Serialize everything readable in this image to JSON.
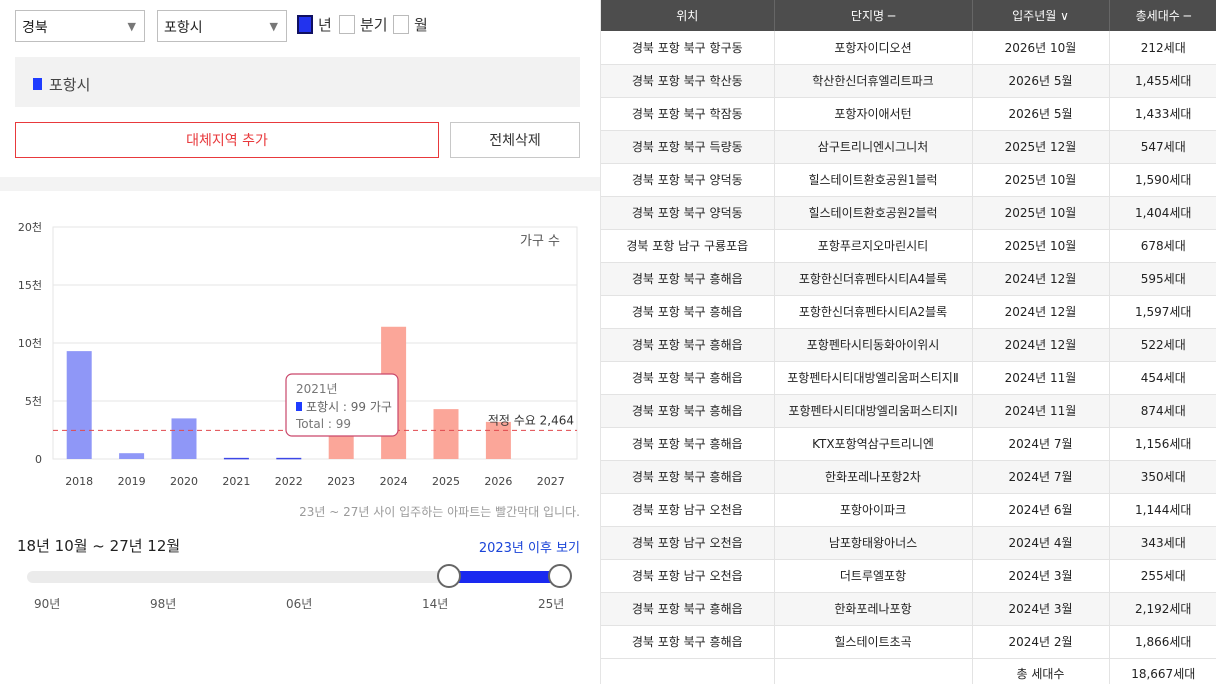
{
  "filters": {
    "province": "경북",
    "city": "포항시",
    "period_options": [
      {
        "label": "년",
        "checked": true
      },
      {
        "label": "분기",
        "checked": false
      },
      {
        "label": "월",
        "checked": false
      }
    ]
  },
  "selected_region": "포항시",
  "buttons": {
    "add_alternative": "대체지역 추가",
    "delete_all": "전체삭제"
  },
  "chart_data": {
    "type": "bar",
    "series_label": "가구 수",
    "y_ticks": [
      "20천",
      "15천",
      "10천",
      "5천",
      "0"
    ],
    "ylim": [
      0,
      20000
    ],
    "categories": [
      "2018",
      "2019",
      "2020",
      "2021",
      "2022",
      "2023",
      "2024",
      "2025",
      "2026",
      "2027"
    ],
    "values": [
      9300,
      500,
      3500,
      99,
      100,
      3200,
      11400,
      4300,
      3200,
      0
    ],
    "past_color": "#8f97f7",
    "future_color": "#fba699",
    "future_from": "2023",
    "reference_line": {
      "value": 2464,
      "label": "적정 수요 2,464",
      "color": "#e0484d"
    },
    "tooltip": {
      "year": "2021년",
      "series": "포항시 : 99 가구",
      "total": "Total : 99"
    }
  },
  "note": "23년 ~ 27년 사이 입주하는 아파트는 빨간막대 입니다.",
  "range": {
    "text": "18년 10월 ~ 27년 12월",
    "link": "2023년 이후 보기",
    "ticks": [
      "90년",
      "98년",
      "06년",
      "14년",
      "25년"
    ]
  },
  "table": {
    "headers": [
      "위치",
      "단지명 ─",
      "입주년월 ∨",
      "총세대수 ─"
    ],
    "rows": [
      [
        "경북 포항 북구 항구동",
        "포항자이디오션",
        "2026년 10월",
        "212세대"
      ],
      [
        "경북 포항 북구 학산동",
        "학산한신더휴엘리트파크",
        "2026년 5월",
        "1,455세대"
      ],
      [
        "경북 포항 북구 학잠동",
        "포항자이애서턴",
        "2026년 5월",
        "1,433세대"
      ],
      [
        "경북 포항 북구 득량동",
        "삼구트리니엔시그니처",
        "2025년 12월",
        "547세대"
      ],
      [
        "경북 포항 북구 양덕동",
        "힐스테이트환호공원1블럭",
        "2025년 10월",
        "1,590세대"
      ],
      [
        "경북 포항 북구 양덕동",
        "힐스테이트환호공원2블럭",
        "2025년 10월",
        "1,404세대"
      ],
      [
        "경북 포항 남구 구룡포읍",
        "포항푸르지오마린시티",
        "2025년 10월",
        "678세대"
      ],
      [
        "경북 포항 북구 흥해읍",
        "포항한신더휴펜타시티A4블록",
        "2024년 12월",
        "595세대"
      ],
      [
        "경북 포항 북구 흥해읍",
        "포항한신더휴펜타시티A2블록",
        "2024년 12월",
        "1,597세대"
      ],
      [
        "경북 포항 북구 흥해읍",
        "포항펜타시티동화아이위시",
        "2024년 12월",
        "522세대"
      ],
      [
        "경북 포항 북구 흥해읍",
        "포항펜타시티대방엘리움퍼스티지Ⅱ",
        "2024년 11월",
        "454세대"
      ],
      [
        "경북 포항 북구 흥해읍",
        "포항펜타시티대방엘리움퍼스티지Ⅰ",
        "2024년 11월",
        "874세대"
      ],
      [
        "경북 포항 북구 흥해읍",
        "KTX포항역삼구트리니엔",
        "2024년 7월",
        "1,156세대"
      ],
      [
        "경북 포항 북구 흥해읍",
        "한화포레나포항2차",
        "2024년 7월",
        "350세대"
      ],
      [
        "경북 포항 남구 오천읍",
        "포항아이파크",
        "2024년 6월",
        "1,144세대"
      ],
      [
        "경북 포항 남구 오천읍",
        "남포항태왕아너스",
        "2024년 4월",
        "343세대"
      ],
      [
        "경북 포항 남구 오천읍",
        "더트루엘포항",
        "2024년 3월",
        "255세대"
      ],
      [
        "경북 포항 북구 흥해읍",
        "한화포레나포항",
        "2024년 3월",
        "2,192세대"
      ],
      [
        "경북 포항 북구 흥해읍",
        "힐스테이트초곡",
        "2024년 2월",
        "1,866세대"
      ]
    ],
    "footer_label": "총 세대수",
    "footer_total": "18,667세대"
  }
}
